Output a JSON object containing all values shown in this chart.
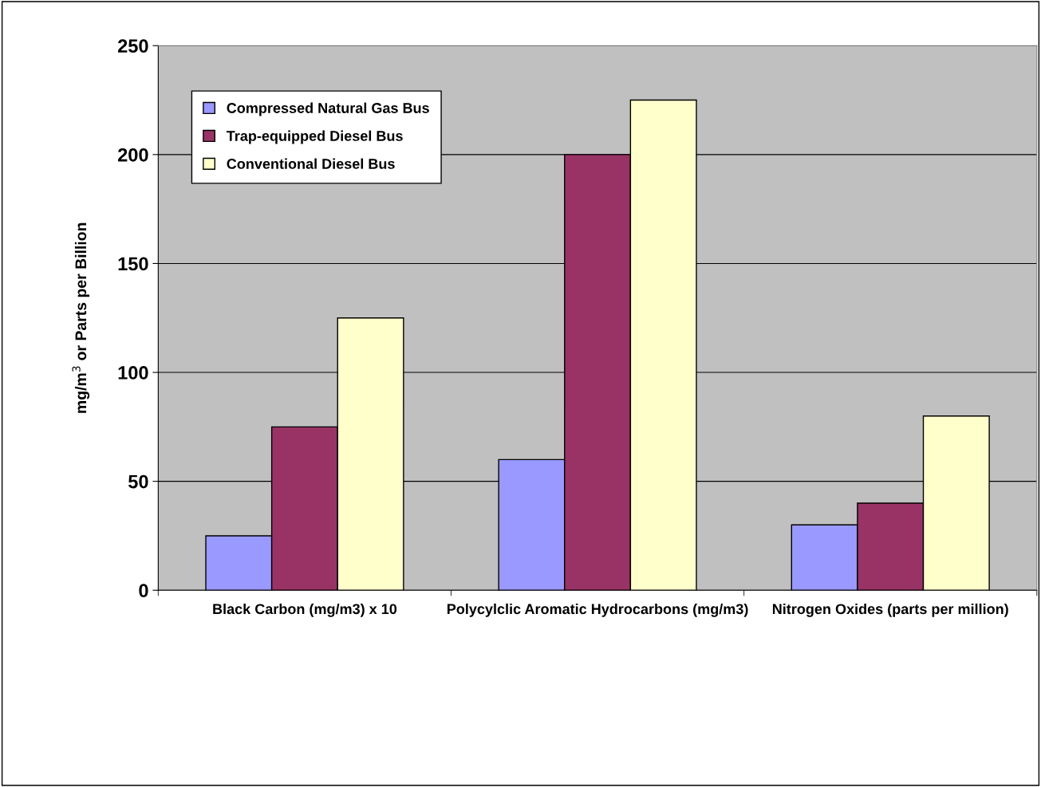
{
  "chart_data": {
    "type": "bar",
    "ylabel": "mg/m$^{3}$ or Parts per Billion",
    "categories": [
      "Black Carbon (mg/m3) x 10",
      "Polycylclic Aromatic Hydrocarbons (mg/m3)",
      "Nitrogen Oxides (parts per million)"
    ],
    "series": [
      {
        "name": "Compressed Natural Gas Bus",
        "color": "#9999ff",
        "values": [
          25,
          60,
          30
        ]
      },
      {
        "name": "Trap-equipped Diesel Bus",
        "color": "#993366",
        "values": [
          75,
          200,
          40
        ]
      },
      {
        "name": "Conventional Diesel Bus",
        "color": "#ffffcc",
        "values": [
          125,
          225,
          80
        ]
      }
    ],
    "ylim": [
      0,
      250
    ],
    "yticks": [
      0,
      50,
      100,
      150,
      200,
      250
    ],
    "grid": "y",
    "legend": "top left"
  }
}
